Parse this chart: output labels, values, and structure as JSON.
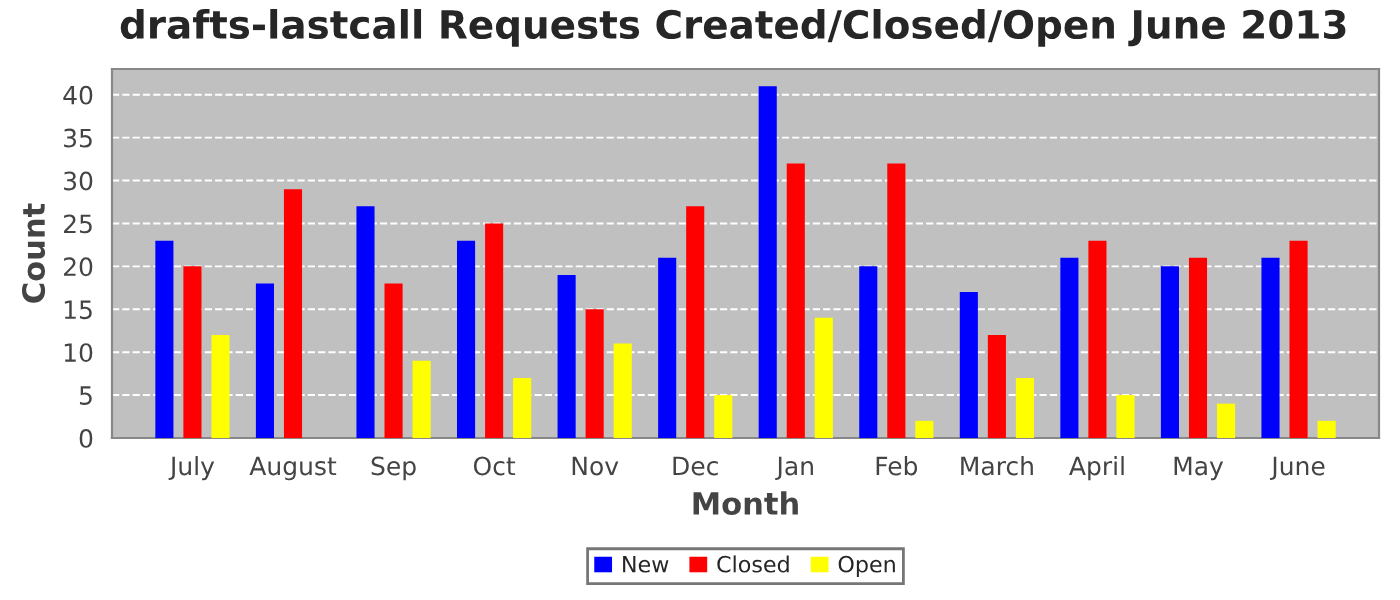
{
  "chart_data": {
    "type": "bar",
    "title": "drafts-lastcall Requests Created/Closed/Open June 2013",
    "xlabel": "Month",
    "ylabel": "Count",
    "categories": [
      "July",
      "August",
      "Sep",
      "Oct",
      "Nov",
      "Dec",
      "Jan",
      "Feb",
      "March",
      "April",
      "May",
      "June"
    ],
    "series": [
      {
        "name": "New",
        "color": "#0000ff",
        "values": [
          23,
          18,
          27,
          23,
          19,
          21,
          41,
          20,
          17,
          21,
          20,
          21
        ]
      },
      {
        "name": "Closed",
        "color": "#ff0000",
        "values": [
          20,
          29,
          18,
          25,
          15,
          27,
          32,
          32,
          12,
          23,
          21,
          23
        ]
      },
      {
        "name": "Open",
        "color": "#ffff00",
        "values": [
          12,
          0,
          9,
          7,
          11,
          5,
          14,
          2,
          7,
          5,
          4,
          2
        ]
      }
    ],
    "ylim": [
      0,
      43
    ],
    "yticks": [
      0,
      5,
      10,
      15,
      20,
      25,
      30,
      35,
      40
    ],
    "grid": "y",
    "legend": "bottom"
  }
}
